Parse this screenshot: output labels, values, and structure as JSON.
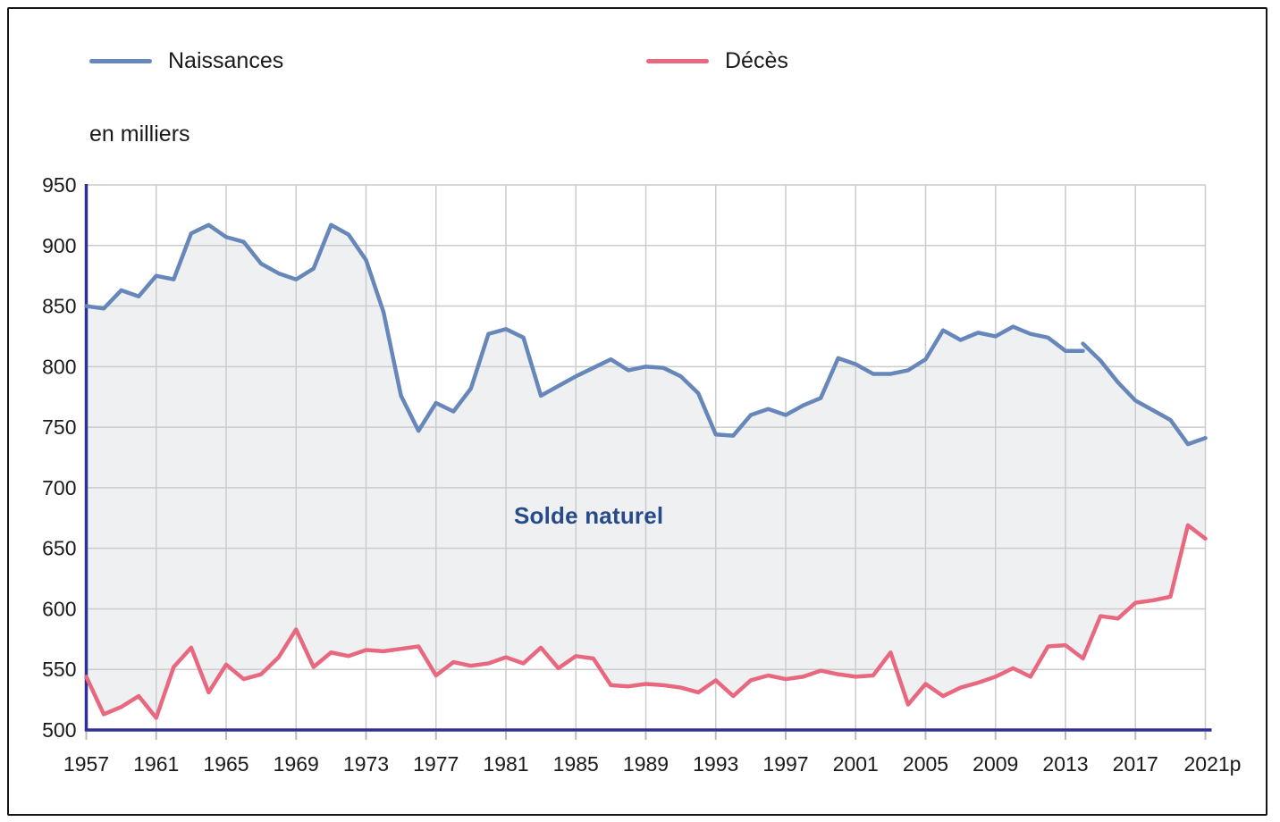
{
  "legend": {
    "items": [
      {
        "label": "Naissances",
        "color": "#6787ba"
      },
      {
        "label": "Décès",
        "color": "#e8697f"
      }
    ]
  },
  "axis_unit_label": "en milliers",
  "area_label": "Solde naturel",
  "style": {
    "grid_color": "#cccccc",
    "axis_color": "#2e3192",
    "tick_color": "#bbbbbb",
    "text_color": "#1a1a1a",
    "area_fill": "#eef0f2",
    "area_label_color": "#274b89",
    "background": "#ffffff",
    "border_color": "#161616"
  },
  "chart_data": {
    "type": "line",
    "title": "",
    "ylabel": "en milliers",
    "ylim": [
      500,
      950
    ],
    "y_tick_step": 50,
    "grid": true,
    "legend_position": "top",
    "x_start_year": 1957,
    "x_end_year": 2021,
    "x_tick_years": [
      1957,
      1961,
      1965,
      1969,
      1973,
      1977,
      1981,
      1985,
      1989,
      1993,
      1997,
      2001,
      2005,
      2009,
      2013,
      2017,
      2021
    ],
    "x_tick_labels": [
      "1957",
      "1961",
      "1965",
      "1969",
      "1973",
      "1977",
      "1981",
      "1985",
      "1989",
      "1993",
      "1997",
      "2001",
      "2005",
      "2009",
      "2013",
      "2017",
      "2021p"
    ],
    "area_between": {
      "label": "Solde naturel"
    },
    "series": [
      {
        "name": "Naissances",
        "color": "#6787ba",
        "series_break": {
          "year": 2014,
          "previous_basis_value": 813
        },
        "values": [
          850,
          848,
          863,
          858,
          875,
          872,
          910,
          917,
          907,
          903,
          885,
          877,
          872,
          881,
          917,
          909,
          888,
          845,
          776,
          747,
          770,
          763,
          782,
          827,
          831,
          824,
          776,
          784,
          792,
          799,
          806,
          797,
          800,
          799,
          792,
          778,
          744,
          743,
          760,
          765,
          760,
          768,
          774,
          807,
          802,
          794,
          794,
          797,
          806,
          830,
          822,
          828,
          825,
          833,
          827,
          824,
          813,
          819,
          805,
          787,
          772,
          764,
          756,
          736,
          741
        ]
      },
      {
        "name": "Décès",
        "color": "#e8697f",
        "values": [
          544,
          513,
          519,
          528,
          510,
          552,
          568,
          531,
          554,
          542,
          546,
          560,
          583,
          552,
          564,
          561,
          566,
          565,
          567,
          569,
          545,
          556,
          553,
          555,
          560,
          555,
          568,
          551,
          561,
          559,
          537,
          536,
          538,
          537,
          535,
          531,
          541,
          528,
          541,
          545,
          542,
          544,
          549,
          546,
          544,
          545,
          564,
          521,
          538,
          528,
          535,
          539,
          544,
          551,
          544,
          569,
          570,
          559,
          594,
          592,
          605,
          607,
          610,
          669,
          658
        ]
      }
    ]
  }
}
